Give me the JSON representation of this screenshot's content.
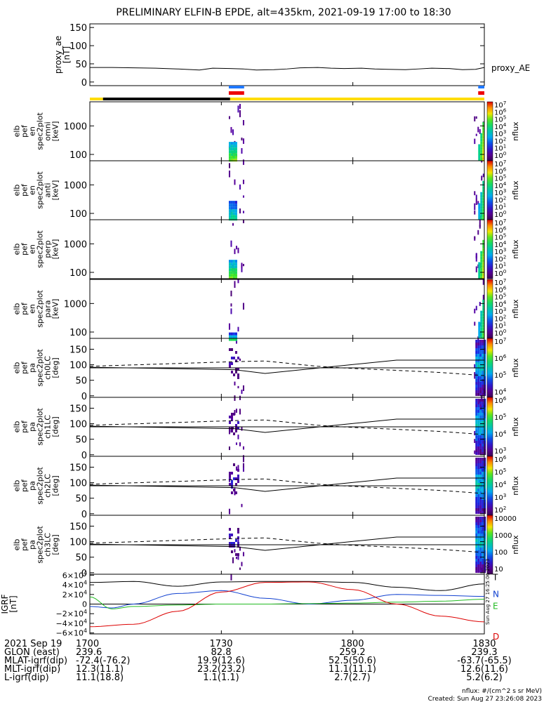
{
  "chart_data": {
    "type": "spectrogram-stack",
    "title": "PRELIMINARY ELFIN-B EPDE, alt=435km, 2021-09-19 17:00 to 18:30",
    "time_range_min": [
      0,
      90
    ],
    "time_ticks": [
      "1700",
      "1730",
      "1800",
      "1830"
    ],
    "time_tick_minutes": [
      0,
      30,
      60,
      90
    ],
    "colors": {
      "science_zone": "#1e78ff",
      "ibo_red": "#ee0000",
      "trace_gold": "#ffdd00",
      "black": "#000000",
      "grf_t": "#000000",
      "grf_n": "#1040d0",
      "grf_e": "#22bb22",
      "grf_d": "#dd0000"
    },
    "proxy_ae": {
      "ylabel": "proxy_ae\n[nT]",
      "legend": "proxy_AE",
      "yticks": [
        "150",
        "100",
        "50",
        "0"
      ],
      "ytick_values": [
        150,
        100,
        50,
        0
      ],
      "ylim": [
        -10,
        160
      ],
      "x": [
        0,
        5,
        10,
        15,
        20,
        25,
        28,
        32,
        35,
        38,
        42,
        45,
        48,
        52,
        55,
        58,
        62,
        65,
        68,
        72,
        75,
        78,
        82,
        85,
        88,
        90
      ],
      "values": [
        40,
        40,
        39,
        38,
        36,
        33,
        38,
        37,
        36,
        33,
        34,
        36,
        39,
        40,
        38,
        37,
        38,
        36,
        35,
        34,
        36,
        38,
        37,
        34,
        35,
        40
      ]
    },
    "status_bar": [
      {
        "start": 0,
        "end": 3.0,
        "color": "#ffdd00"
      },
      {
        "start": 3.0,
        "end": 32.0,
        "color": "#000000"
      },
      {
        "start": 32.0,
        "end": 90,
        "color": "#ffdd00"
      }
    ],
    "science_zones": [
      {
        "start": 31.7,
        "end": 35.2
      },
      {
        "start": 88.6,
        "end": 90
      }
    ],
    "panels": [
      {
        "label": "elb\npef\nen\nspec2plot\nomni\n[keV]",
        "type": "energy",
        "ytick_labels": [
          "1000",
          "100"
        ],
        "ytick_values": [
          1000,
          100
        ],
        "ylim": [
          60,
          7000
        ],
        "cb_ticks": [
          "10^7",
          "10^6",
          "10^5",
          "10^4",
          "10^3",
          "10^2",
          "10^1",
          "10^0"
        ],
        "cb_label": "nflux"
      },
      {
        "label": "elb\npef\nen\nspec2plot\nanti\n[keV]",
        "type": "energy",
        "ytick_labels": [
          "1000",
          "100"
        ],
        "ytick_values": [
          1000,
          100
        ],
        "ylim": [
          60,
          7000
        ],
        "cb_ticks": [
          "10^7",
          "10^6",
          "10^5",
          "10^4",
          "10^3",
          "10^2",
          "10^1",
          "10^0"
        ],
        "cb_label": "nflux"
      },
      {
        "label": "elb\npef\nen\nspec2plot\nperp\n[keV]",
        "type": "energy",
        "ytick_labels": [
          "1000",
          "100"
        ],
        "ytick_values": [
          1000,
          100
        ],
        "ylim": [
          60,
          7000
        ],
        "cb_ticks": [
          "10^7",
          "10^6",
          "10^5",
          "10^4",
          "10^3",
          "10^2",
          "10^1",
          "10^0"
        ],
        "cb_label": "nflux"
      },
      {
        "label": "elb\npef\nen\nspec2plot\npara\n[keV]",
        "type": "energy",
        "ytick_labels": [
          "1000",
          "100"
        ],
        "ytick_values": [
          1000,
          100
        ],
        "ylim": [
          60,
          7000
        ],
        "cb_ticks": [
          "10^7",
          "10^6",
          "10^5",
          "10^4",
          "10^3",
          "10^2",
          "10^1",
          "10^0"
        ],
        "cb_label": "nflux"
      },
      {
        "label": "elb\npef\npa\nspec2plot\nch0LC\n[deg]",
        "type": "pa",
        "ytick_labels": [
          "150",
          "100",
          "50",
          "0"
        ],
        "ytick_values": [
          150,
          100,
          50,
          0
        ],
        "ylim": [
          -5,
          185
        ],
        "cb_ticks": [
          "10^7",
          "10^6",
          "10^5",
          "10^4"
        ],
        "cb_label": "nflux"
      },
      {
        "label": "elb\npef\npa\nspec2plot\nch1LC\n[deg]",
        "type": "pa",
        "ytick_labels": [
          "150",
          "100",
          "50",
          "0"
        ],
        "ytick_values": [
          150,
          100,
          50,
          0
        ],
        "ylim": [
          -5,
          185
        ],
        "cb_ticks": [
          "10^6",
          "10^5",
          "10^4",
          "10^3"
        ],
        "cb_label": "nflux"
      },
      {
        "label": "elb\npef\npa\nspec2plot\nch2LC\n[deg]",
        "type": "pa",
        "ytick_labels": [
          "150",
          "100",
          "50",
          "0"
        ],
        "ytick_values": [
          150,
          100,
          50,
          0
        ],
        "ylim": [
          -5,
          185
        ],
        "cb_ticks": [
          "10^6",
          "10^5",
          "10^4",
          "10^3",
          "10^2"
        ],
        "cb_label": "nflux"
      },
      {
        "label": "elb\npef\npa\nspec2plot\nch3LC\n[deg]",
        "type": "pa",
        "ytick_labels": [
          "150",
          "100",
          "50",
          "0"
        ],
        "ytick_values": [
          150,
          100,
          50,
          0
        ],
        "ylim": [
          -5,
          185
        ],
        "cb_ticks": [
          "10000",
          "1000",
          "100",
          "10"
        ],
        "cb_label": "nflux"
      }
    ],
    "pa_lines": {
      "solid_x": [
        0,
        33,
        40,
        70,
        90
      ],
      "solid_y": [
        92,
        84,
        72,
        115,
        115
      ],
      "dashed_x": [
        0,
        33,
        40,
        52,
        60,
        70,
        80,
        90
      ],
      "dashed_y": [
        95,
        110,
        112,
        95,
        88,
        82,
        75,
        65
      ],
      "hline": 90
    },
    "grf": {
      "ylabel": "IGRF\n[nT]",
      "yticks": [
        "6×10^4",
        "4×10^4",
        "2×10^4",
        "0",
        "−2×10^4",
        "−4×10^4",
        "−6×10^4"
      ],
      "ytick_values": [
        60000,
        40000,
        20000,
        0,
        -20000,
        -40000,
        -60000
      ],
      "ylim": [
        -62000,
        62000
      ],
      "series": [
        {
          "name": "T",
          "x": [
            0,
            10,
            20,
            30,
            40,
            50,
            60,
            70,
            80,
            90
          ],
          "values": [
            45000,
            47000,
            37000,
            46000,
            47000,
            47000,
            45000,
            35000,
            28000,
            42000
          ]
        },
        {
          "name": "N",
          "x": [
            0,
            5,
            10,
            20,
            30,
            40,
            50,
            60,
            70,
            80,
            90
          ],
          "values": [
            -5000,
            -8000,
            0,
            22000,
            28000,
            12000,
            0,
            8000,
            20000,
            18000,
            16000
          ]
        },
        {
          "name": "E",
          "x": [
            0,
            5,
            10,
            20,
            30,
            40,
            50,
            60,
            70,
            80,
            90
          ],
          "values": [
            15000,
            -10000,
            -5000,
            -2000,
            0,
            0,
            1000,
            2000,
            4000,
            6000,
            10000
          ]
        },
        {
          "name": "D",
          "x": [
            0,
            10,
            20,
            30,
            40,
            50,
            60,
            70,
            80,
            90
          ],
          "values": [
            -47000,
            -42000,
            -15000,
            25000,
            45000,
            46000,
            30000,
            0,
            -25000,
            -37000
          ]
        }
      ]
    },
    "ephemeris": {
      "labels": [
        "2021 Sep 19",
        "GLON (east)",
        "MLAT-igrf(dip)",
        "MLT-igrf(dip)",
        "L-igrf(dip)"
      ],
      "columns": [
        [
          "1700",
          "239.6",
          "-72.4(-76.2)",
          "12.3(11.1)",
          "11.1(18.8)"
        ],
        [
          "1730",
          "82.8",
          "19.9(12.6)",
          "23.2(23.2)",
          "1.1(1.1)"
        ],
        [
          "1800",
          "259.2",
          "52.5(50.6)",
          "11.1(11.1)",
          "2.7(2.7)"
        ],
        [
          "1830",
          "239.3",
          "-63.7(-65.5)",
          "12.6(11.6)",
          "5.2(6.2)"
        ]
      ]
    },
    "footer": {
      "units": "nflux: #/(cm^2 s sr MeV)",
      "created": "Created: Sun Aug 27 23:26:08 2023",
      "side_stamp": "Sun Aug 27 16:25:06 2023"
    }
  }
}
